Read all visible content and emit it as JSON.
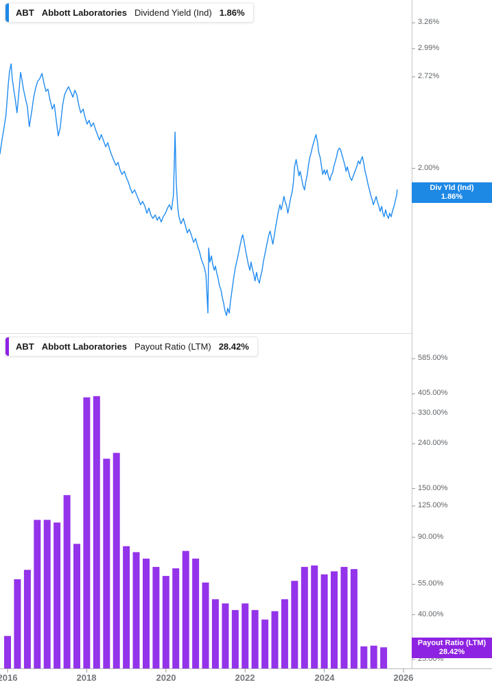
{
  "x_axis": {
    "labels": [
      "2016",
      "2018",
      "2020",
      "2022",
      "2024",
      "2026"
    ],
    "years": [
      2016,
      2018,
      2020,
      2022,
      2024,
      2026
    ]
  },
  "panels": [
    {
      "legend": {
        "ticker": "ABT",
        "company": "Abbott Laboratories",
        "metric": "Dividend Yield (Ind)",
        "value": "1.86%"
      },
      "badge": {
        "label": "Div Yld (Ind)",
        "value": "1.86%"
      },
      "colors": {
        "accent": "#1e88e5",
        "line": "#1f8bf0",
        "badge": "#1e88e5"
      },
      "y_tick_labels": [
        "3.26%",
        "2.99%",
        "2.72%",
        "2.00%"
      ]
    },
    {
      "legend": {
        "ticker": "ABT",
        "company": "Abbott Laboratories",
        "metric": "Payout Ratio (LTM)",
        "value": "28.42%"
      },
      "badge": {
        "label": "Payout Ratio (LTM)",
        "value": "28.42%"
      },
      "colors": {
        "accent": "#8e22e2",
        "bar": "#9333ea",
        "badge": "#8e22e2"
      },
      "y_tick_labels": [
        "585.00%",
        "405.00%",
        "330.00%",
        "240.00%",
        "150.00%",
        "125.00%",
        "90.00%",
        "55.00%",
        "40.00%",
        "25.00%"
      ]
    }
  ],
  "chart_data": [
    {
      "type": "line",
      "title": "ABT Dividend Yield (Ind)",
      "unit": "percent",
      "yscale": "log",
      "grid": false,
      "current_value": 1.86,
      "y_ticks": [
        3.26,
        2.99,
        2.72,
        2.0
      ],
      "x_range": [
        2015.81,
        2025.84
      ],
      "points": [
        [
          2015.81,
          2.1
        ],
        [
          2015.86,
          2.2
        ],
        [
          2015.91,
          2.29
        ],
        [
          2015.96,
          2.39
        ],
        [
          2016.02,
          2.66
        ],
        [
          2016.05,
          2.77
        ],
        [
          2016.09,
          2.84
        ],
        [
          2016.12,
          2.7
        ],
        [
          2016.16,
          2.6
        ],
        [
          2016.19,
          2.53
        ],
        [
          2016.24,
          2.41
        ],
        [
          2016.28,
          2.56
        ],
        [
          2016.33,
          2.76
        ],
        [
          2016.36,
          2.7
        ],
        [
          2016.4,
          2.61
        ],
        [
          2016.45,
          2.53
        ],
        [
          2016.5,
          2.46
        ],
        [
          2016.55,
          2.3
        ],
        [
          2016.61,
          2.42
        ],
        [
          2016.66,
          2.54
        ],
        [
          2016.71,
          2.62
        ],
        [
          2016.76,
          2.68
        ],
        [
          2016.81,
          2.7
        ],
        [
          2016.87,
          2.75
        ],
        [
          2016.92,
          2.66
        ],
        [
          2016.97,
          2.59
        ],
        [
          2017.02,
          2.61
        ],
        [
          2017.07,
          2.52
        ],
        [
          2017.13,
          2.44
        ],
        [
          2017.18,
          2.48
        ],
        [
          2017.23,
          2.35
        ],
        [
          2017.28,
          2.23
        ],
        [
          2017.33,
          2.29
        ],
        [
          2017.39,
          2.47
        ],
        [
          2017.44,
          2.56
        ],
        [
          2017.49,
          2.6
        ],
        [
          2017.54,
          2.63
        ],
        [
          2017.59,
          2.59
        ],
        [
          2017.65,
          2.54
        ],
        [
          2017.7,
          2.6
        ],
        [
          2017.75,
          2.56
        ],
        [
          2017.8,
          2.47
        ],
        [
          2017.85,
          2.41
        ],
        [
          2017.91,
          2.44
        ],
        [
          2017.96,
          2.37
        ],
        [
          2018.01,
          2.32
        ],
        [
          2018.06,
          2.35
        ],
        [
          2018.11,
          2.3
        ],
        [
          2018.17,
          2.33
        ],
        [
          2018.22,
          2.28
        ],
        [
          2018.27,
          2.24
        ],
        [
          2018.32,
          2.2
        ],
        [
          2018.37,
          2.24
        ],
        [
          2018.43,
          2.19
        ],
        [
          2018.48,
          2.15
        ],
        [
          2018.53,
          2.18
        ],
        [
          2018.58,
          2.13
        ],
        [
          2018.63,
          2.09
        ],
        [
          2018.69,
          2.05
        ],
        [
          2018.74,
          2.02
        ],
        [
          2018.79,
          2.04
        ],
        [
          2018.84,
          1.99
        ],
        [
          2018.89,
          1.96
        ],
        [
          2018.95,
          1.98
        ],
        [
          2019.0,
          1.94
        ],
        [
          2019.05,
          1.91
        ],
        [
          2019.1,
          1.87
        ],
        [
          2019.15,
          1.84
        ],
        [
          2019.21,
          1.86
        ],
        [
          2019.26,
          1.83
        ],
        [
          2019.31,
          1.8
        ],
        [
          2019.36,
          1.77
        ],
        [
          2019.41,
          1.79
        ],
        [
          2019.47,
          1.76
        ],
        [
          2019.52,
          1.72
        ],
        [
          2019.57,
          1.75
        ],
        [
          2019.62,
          1.71
        ],
        [
          2019.67,
          1.69
        ],
        [
          2019.73,
          1.71
        ],
        [
          2019.78,
          1.68
        ],
        [
          2019.83,
          1.7
        ],
        [
          2019.88,
          1.67
        ],
        [
          2019.93,
          1.7
        ],
        [
          2019.99,
          1.72
        ],
        [
          2020.04,
          1.75
        ],
        [
          2020.09,
          1.77
        ],
        [
          2020.14,
          1.74
        ],
        [
          2020.19,
          1.83
        ],
        [
          2020.23,
          2.26
        ],
        [
          2020.26,
          1.91
        ],
        [
          2020.3,
          1.75
        ],
        [
          2020.33,
          1.7
        ],
        [
          2020.38,
          1.66
        ],
        [
          2020.44,
          1.69
        ],
        [
          2020.49,
          1.65
        ],
        [
          2020.54,
          1.61
        ],
        [
          2020.59,
          1.63
        ],
        [
          2020.64,
          1.6
        ],
        [
          2020.7,
          1.56
        ],
        [
          2020.75,
          1.58
        ],
        [
          2020.8,
          1.54
        ],
        [
          2020.85,
          1.51
        ],
        [
          2020.9,
          1.47
        ],
        [
          2020.96,
          1.44
        ],
        [
          2021.01,
          1.4
        ],
        [
          2021.04,
          1.3
        ],
        [
          2021.06,
          1.23
        ],
        [
          2021.08,
          1.53
        ],
        [
          2021.11,
          1.46
        ],
        [
          2021.15,
          1.49
        ],
        [
          2021.18,
          1.45
        ],
        [
          2021.22,
          1.42
        ],
        [
          2021.25,
          1.44
        ],
        [
          2021.28,
          1.41
        ],
        [
          2021.32,
          1.38
        ],
        [
          2021.35,
          1.35
        ],
        [
          2021.39,
          1.33
        ],
        [
          2021.42,
          1.3
        ],
        [
          2021.46,
          1.27
        ],
        [
          2021.49,
          1.24
        ],
        [
          2021.53,
          1.22
        ],
        [
          2021.56,
          1.25
        ],
        [
          2021.6,
          1.23
        ],
        [
          2021.63,
          1.28
        ],
        [
          2021.67,
          1.33
        ],
        [
          2021.7,
          1.37
        ],
        [
          2021.75,
          1.43
        ],
        [
          2021.81,
          1.48
        ],
        [
          2021.86,
          1.53
        ],
        [
          2021.91,
          1.58
        ],
        [
          2021.94,
          1.6
        ],
        [
          2021.98,
          1.56
        ],
        [
          2022.01,
          1.52
        ],
        [
          2022.05,
          1.48
        ],
        [
          2022.08,
          1.45
        ],
        [
          2022.12,
          1.42
        ],
        [
          2022.15,
          1.46
        ],
        [
          2022.19,
          1.42
        ],
        [
          2022.22,
          1.4
        ],
        [
          2022.25,
          1.37
        ],
        [
          2022.29,
          1.41
        ],
        [
          2022.32,
          1.38
        ],
        [
          2022.36,
          1.36
        ],
        [
          2022.39,
          1.39
        ],
        [
          2022.43,
          1.42
        ],
        [
          2022.46,
          1.46
        ],
        [
          2022.5,
          1.5
        ],
        [
          2022.53,
          1.53
        ],
        [
          2022.57,
          1.57
        ],
        [
          2022.6,
          1.6
        ],
        [
          2022.63,
          1.62
        ],
        [
          2022.67,
          1.58
        ],
        [
          2022.7,
          1.55
        ],
        [
          2022.74,
          1.6
        ],
        [
          2022.77,
          1.64
        ],
        [
          2022.81,
          1.69
        ],
        [
          2022.84,
          1.73
        ],
        [
          2022.88,
          1.77
        ],
        [
          2022.91,
          1.74
        ],
        [
          2022.95,
          1.78
        ],
        [
          2022.98,
          1.82
        ],
        [
          2023.01,
          1.79
        ],
        [
          2023.05,
          1.76
        ],
        [
          2023.08,
          1.72
        ],
        [
          2023.12,
          1.77
        ],
        [
          2023.15,
          1.81
        ],
        [
          2023.19,
          1.85
        ],
        [
          2023.22,
          1.91
        ],
        [
          2023.25,
          2.01
        ],
        [
          2023.29,
          2.06
        ],
        [
          2023.32,
          2.01
        ],
        [
          2023.36,
          1.95
        ],
        [
          2023.39,
          1.98
        ],
        [
          2023.43,
          1.93
        ],
        [
          2023.46,
          1.89
        ],
        [
          2023.5,
          1.86
        ],
        [
          2023.53,
          1.91
        ],
        [
          2023.57,
          1.96
        ],
        [
          2023.6,
          2.02
        ],
        [
          2023.63,
          2.07
        ],
        [
          2023.67,
          2.11
        ],
        [
          2023.7,
          2.15
        ],
        [
          2023.74,
          2.19
        ],
        [
          2023.77,
          2.22
        ],
        [
          2023.79,
          2.24
        ],
        [
          2023.83,
          2.18
        ],
        [
          2023.86,
          2.11
        ],
        [
          2023.9,
          2.07
        ],
        [
          2023.93,
          2.01
        ],
        [
          2023.96,
          1.96
        ],
        [
          2024.0,
          1.99
        ],
        [
          2024.03,
          1.96
        ],
        [
          2024.07,
          1.99
        ],
        [
          2024.1,
          1.95
        ],
        [
          2024.14,
          1.92
        ],
        [
          2024.17,
          1.95
        ],
        [
          2024.21,
          1.97
        ],
        [
          2024.24,
          2.01
        ],
        [
          2024.28,
          2.05
        ],
        [
          2024.31,
          2.08
        ],
        [
          2024.34,
          2.12
        ],
        [
          2024.38,
          2.14
        ],
        [
          2024.41,
          2.13
        ],
        [
          2024.45,
          2.09
        ],
        [
          2024.48,
          2.06
        ],
        [
          2024.52,
          2.02
        ],
        [
          2024.55,
          1.98
        ],
        [
          2024.58,
          2.01
        ],
        [
          2024.62,
          1.97
        ],
        [
          2024.65,
          1.94
        ],
        [
          2024.69,
          1.92
        ],
        [
          2024.72,
          1.94
        ],
        [
          2024.76,
          1.97
        ],
        [
          2024.79,
          1.99
        ],
        [
          2024.83,
          2.02
        ],
        [
          2024.86,
          2.05
        ],
        [
          2024.9,
          2.03
        ],
        [
          2024.93,
          2.06
        ],
        [
          2024.96,
          2.08
        ],
        [
          2025.0,
          2.03
        ],
        [
          2025.03,
          1.98
        ],
        [
          2025.07,
          1.94
        ],
        [
          2025.1,
          1.9
        ],
        [
          2025.14,
          1.86
        ],
        [
          2025.17,
          1.83
        ],
        [
          2025.21,
          1.8
        ],
        [
          2025.24,
          1.77
        ],
        [
          2025.27,
          1.79
        ],
        [
          2025.31,
          1.82
        ],
        [
          2025.34,
          1.79
        ],
        [
          2025.38,
          1.76
        ],
        [
          2025.41,
          1.73
        ],
        [
          2025.45,
          1.76
        ],
        [
          2025.48,
          1.72
        ],
        [
          2025.51,
          1.7
        ],
        [
          2025.55,
          1.74
        ],
        [
          2025.58,
          1.71
        ],
        [
          2025.62,
          1.69
        ],
        [
          2025.65,
          1.72
        ],
        [
          2025.69,
          1.7
        ],
        [
          2025.72,
          1.73
        ],
        [
          2025.76,
          1.76
        ],
        [
          2025.79,
          1.79
        ],
        [
          2025.83,
          1.83
        ],
        [
          2025.84,
          1.86
        ]
      ]
    },
    {
      "type": "bar",
      "title": "ABT Payout Ratio (LTM)",
      "unit": "percent",
      "yscale": "log",
      "grid": false,
      "current_value": 28.42,
      "y_ticks": [
        585,
        405,
        330,
        240,
        150,
        125,
        90,
        55,
        40,
        25
      ],
      "categories": [
        "2016 Q1",
        "2016 Q2",
        "2016 Q3",
        "2016 Q4",
        "2017 Q1",
        "2017 Q2",
        "2017 Q3",
        "2017 Q4",
        "2018 Q1",
        "2018 Q2",
        "2018 Q3",
        "2018 Q4",
        "2019 Q1",
        "2019 Q2",
        "2019 Q3",
        "2019 Q4",
        "2020 Q1",
        "2020 Q2",
        "2020 Q3",
        "2020 Q4",
        "2021 Q1",
        "2021 Q2",
        "2021 Q3",
        "2021 Q4",
        "2022 Q1",
        "2022 Q2",
        "2022 Q3",
        "2022 Q4",
        "2023 Q1",
        "2023 Q2",
        "2023 Q3",
        "2023 Q4",
        "2024 Q1",
        "2024 Q2",
        "2024 Q3",
        "2024 Q4",
        "2025 Q1",
        "2025 Q2",
        "2025 Q3"
      ],
      "values": [
        32,
        58,
        64,
        108,
        108,
        105,
        140,
        84,
        390,
        395,
        205,
        218,
        82,
        77,
        72,
        66,
        60,
        65,
        78,
        72,
        56,
        47,
        45,
        42,
        45,
        42,
        38,
        41.5,
        47,
        57,
        66,
        67,
        61,
        63,
        66,
        64.5,
        28.7,
        28.9,
        28.42
      ]
    }
  ]
}
